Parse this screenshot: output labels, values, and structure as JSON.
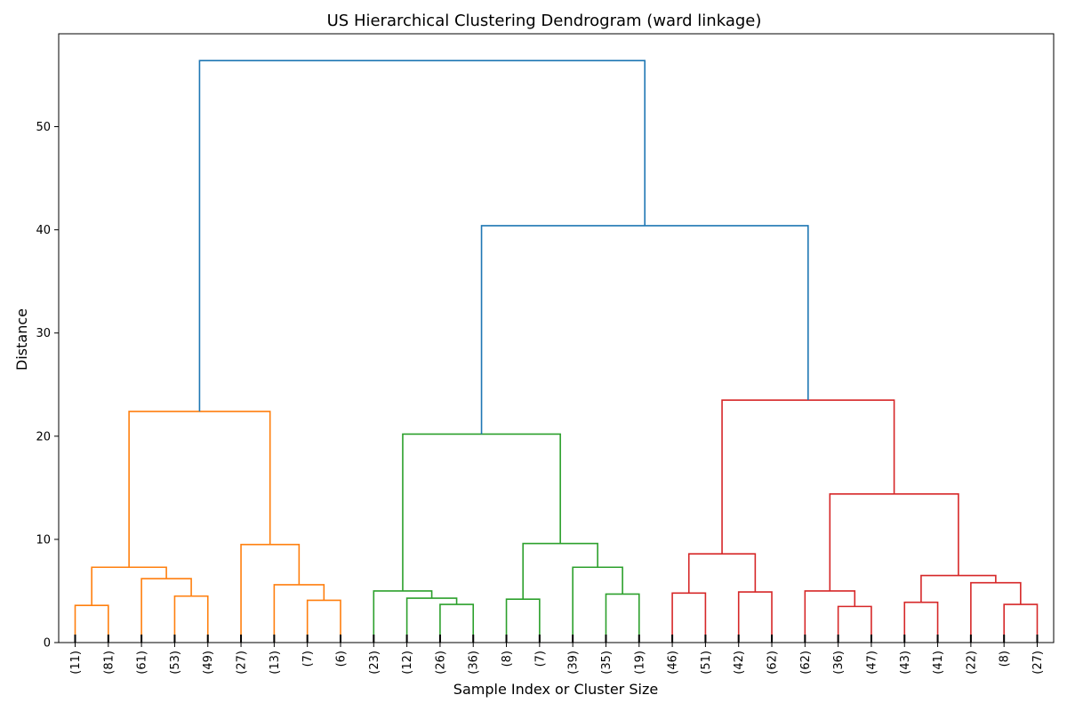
{
  "chart_data": {
    "type": "dendrogram",
    "title": "US Hierarchical Clustering Dendrogram (ward linkage)",
    "xlabel": "Sample Index or Cluster Size",
    "ylabel": "Distance",
    "ylim": [
      0,
      59
    ],
    "yticks": [
      0,
      10,
      20,
      30,
      40,
      50
    ],
    "leaf_labels": [
      "(11)",
      "(81)",
      "(61)",
      "(53)",
      "(49)",
      "(27)",
      "(13)",
      "(7)",
      "(6)",
      "(23)",
      "(12)",
      "(26)",
      "(36)",
      "(8)",
      "(7)",
      "(39)",
      "(35)",
      "(19)",
      "(46)",
      "(51)",
      "(42)",
      "(62)",
      "(62)",
      "(36)",
      "(47)",
      "(43)",
      "(41)",
      "(22)",
      "(8)",
      "(27)"
    ],
    "colors": {
      "top": "#1f77b4",
      "c1": "#ff7f0e",
      "c2": "#2ca02c",
      "c3": "#d62728"
    },
    "links": [
      {
        "a": 0,
        "b": 1,
        "h": 3.6,
        "color": "c1"
      },
      {
        "a": 3,
        "b": 4,
        "h": 4.5,
        "color": "c1"
      },
      {
        "a": 2,
        "b": 31,
        "h": 6.2,
        "color": "c1"
      },
      {
        "a": 30,
        "b": 32,
        "h": 7.3,
        "color": "c1"
      },
      {
        "a": 7,
        "b": 8,
        "h": 4.1,
        "color": "c1"
      },
      {
        "a": 6,
        "b": 34,
        "h": 5.6,
        "color": "c1"
      },
      {
        "a": 5,
        "b": 35,
        "h": 9.5,
        "color": "c1"
      },
      {
        "a": 33,
        "b": 36,
        "h": 22.4,
        "color": "c1"
      },
      {
        "a": 11,
        "b": 12,
        "h": 3.7,
        "color": "c2"
      },
      {
        "a": 10,
        "b": 38,
        "h": 4.3,
        "color": "c2"
      },
      {
        "a": 9,
        "b": 39,
        "h": 5.0,
        "color": "c2"
      },
      {
        "a": 13,
        "b": 14,
        "h": 4.2,
        "color": "c2"
      },
      {
        "a": 16,
        "b": 17,
        "h": 4.7,
        "color": "c2"
      },
      {
        "a": 15,
        "b": 42,
        "h": 7.3,
        "color": "c2"
      },
      {
        "a": 41,
        "b": 43,
        "h": 9.6,
        "color": "c2"
      },
      {
        "a": 40,
        "b": 44,
        "h": 20.2,
        "color": "c2"
      },
      {
        "a": 18,
        "b": 19,
        "h": 4.8,
        "color": "c3"
      },
      {
        "a": 20,
        "b": 21,
        "h": 4.9,
        "color": "c3"
      },
      {
        "a": 46,
        "b": 47,
        "h": 8.6,
        "color": "c3"
      },
      {
        "a": 23,
        "b": 24,
        "h": 3.5,
        "color": "c3"
      },
      {
        "a": 22,
        "b": 49,
        "h": 5.0,
        "color": "c3"
      },
      {
        "a": 25,
        "b": 26,
        "h": 3.9,
        "color": "c3"
      },
      {
        "a": 28,
        "b": 29,
        "h": 3.7,
        "color": "c3"
      },
      {
        "a": 27,
        "b": 52,
        "h": 5.8,
        "color": "c3"
      },
      {
        "a": 51,
        "b": 53,
        "h": 6.5,
        "color": "c3"
      },
      {
        "a": 50,
        "b": 54,
        "h": 14.4,
        "color": "c3"
      },
      {
        "a": 48,
        "b": 55,
        "h": 23.5,
        "color": "c3"
      },
      {
        "a": 45,
        "b": 56,
        "h": 40.4,
        "color": "top"
      },
      {
        "a": 37,
        "b": 57,
        "h": 56.4,
        "color": "top"
      }
    ]
  }
}
